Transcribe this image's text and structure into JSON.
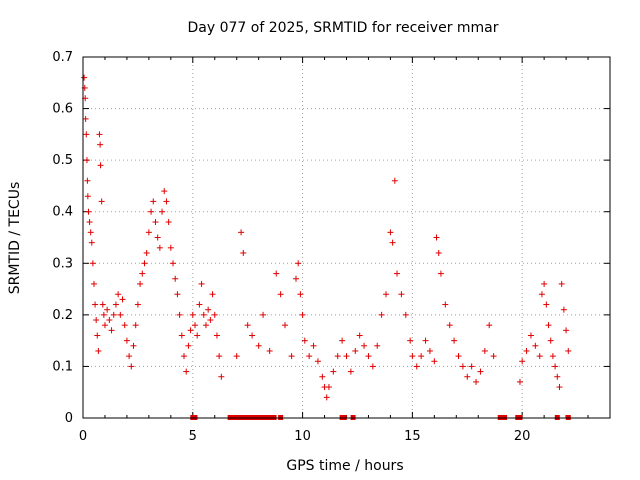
{
  "chart_data": {
    "type": "scatter",
    "title": "Day 077 of 2025, SRMTID for receiver mmar",
    "xlabel": "GPS time / hours",
    "ylabel": "SRMTID / TECUs",
    "xlim": [
      0,
      24
    ],
    "ylim": [
      0,
      0.7
    ],
    "xticks": [
      "0",
      "5",
      "10",
      "15",
      "20"
    ],
    "yticks": [
      "0",
      "0.1",
      "0.2",
      "0.3",
      "0.4",
      "0.5",
      "0.6",
      "0.7"
    ],
    "grid": true,
    "marker": "+",
    "color": "#e00000",
    "series": [
      {
        "name": "SRMTID",
        "points": [
          [
            0.05,
            0.66
          ],
          [
            0.08,
            0.64
          ],
          [
            0.1,
            0.62
          ],
          [
            0.12,
            0.58
          ],
          [
            0.15,
            0.55
          ],
          [
            0.18,
            0.5
          ],
          [
            0.2,
            0.46
          ],
          [
            0.22,
            0.43
          ],
          [
            0.25,
            0.4
          ],
          [
            0.3,
            0.38
          ],
          [
            0.35,
            0.36
          ],
          [
            0.4,
            0.34
          ],
          [
            0.45,
            0.3
          ],
          [
            0.5,
            0.26
          ],
          [
            0.55,
            0.22
          ],
          [
            0.6,
            0.19
          ],
          [
            0.65,
            0.16
          ],
          [
            0.7,
            0.13
          ],
          [
            0.75,
            0.55
          ],
          [
            0.78,
            0.53
          ],
          [
            0.8,
            0.49
          ],
          [
            0.85,
            0.42
          ],
          [
            0.9,
            0.22
          ],
          [
            0.95,
            0.2
          ],
          [
            1.0,
            0.18
          ],
          [
            1.1,
            0.21
          ],
          [
            1.2,
            0.19
          ],
          [
            1.3,
            0.17
          ],
          [
            1.4,
            0.2
          ],
          [
            1.5,
            0.22
          ],
          [
            1.6,
            0.24
          ],
          [
            1.7,
            0.2
          ],
          [
            1.8,
            0.23
          ],
          [
            1.9,
            0.18
          ],
          [
            2.0,
            0.15
          ],
          [
            2.1,
            0.12
          ],
          [
            2.2,
            0.1
          ],
          [
            2.3,
            0.14
          ],
          [
            2.4,
            0.18
          ],
          [
            2.5,
            0.22
          ],
          [
            2.6,
            0.26
          ],
          [
            2.7,
            0.28
          ],
          [
            2.8,
            0.3
          ],
          [
            2.9,
            0.32
          ],
          [
            3.0,
            0.36
          ],
          [
            3.1,
            0.4
          ],
          [
            3.2,
            0.42
          ],
          [
            3.3,
            0.38
          ],
          [
            3.4,
            0.35
          ],
          [
            3.5,
            0.33
          ],
          [
            3.6,
            0.4
          ],
          [
            3.7,
            0.44
          ],
          [
            3.8,
            0.42
          ],
          [
            3.9,
            0.38
          ],
          [
            4.0,
            0.33
          ],
          [
            4.1,
            0.3
          ],
          [
            4.2,
            0.27
          ],
          [
            4.3,
            0.24
          ],
          [
            4.4,
            0.2
          ],
          [
            4.5,
            0.16
          ],
          [
            4.6,
            0.12
          ],
          [
            4.7,
            0.09
          ],
          [
            4.8,
            0.14
          ],
          [
            4.9,
            0.17
          ],
          [
            5.0,
            0.2
          ],
          [
            5.1,
            0.18
          ],
          [
            5.2,
            0.16
          ],
          [
            5.3,
            0.22
          ],
          [
            5.4,
            0.26
          ],
          [
            5.5,
            0.2
          ],
          [
            5.6,
            0.18
          ],
          [
            5.7,
            0.21
          ],
          [
            5.8,
            0.19
          ],
          [
            5.9,
            0.24
          ],
          [
            6.0,
            0.2
          ],
          [
            6.1,
            0.16
          ],
          [
            6.2,
            0.12
          ],
          [
            6.3,
            0.08
          ],
          [
            7.0,
            0.12
          ],
          [
            7.2,
            0.36
          ],
          [
            7.3,
            0.32
          ],
          [
            7.5,
            0.18
          ],
          [
            7.7,
            0.16
          ],
          [
            8.0,
            0.14
          ],
          [
            8.2,
            0.2
          ],
          [
            8.5,
            0.13
          ],
          [
            8.8,
            0.28
          ],
          [
            9.0,
            0.24
          ],
          [
            9.2,
            0.18
          ],
          [
            9.5,
            0.12
          ],
          [
            9.7,
            0.27
          ],
          [
            9.8,
            0.3
          ],
          [
            9.9,
            0.24
          ],
          [
            10.0,
            0.2
          ],
          [
            10.1,
            0.15
          ],
          [
            10.3,
            0.12
          ],
          [
            10.5,
            0.14
          ],
          [
            10.7,
            0.11
          ],
          [
            10.9,
            0.08
          ],
          [
            11.0,
            0.06
          ],
          [
            11.1,
            0.04
          ],
          [
            11.2,
            0.06
          ],
          [
            11.4,
            0.09
          ],
          [
            11.6,
            0.12
          ],
          [
            11.8,
            0.15
          ],
          [
            12.0,
            0.12
          ],
          [
            12.2,
            0.09
          ],
          [
            12.4,
            0.13
          ],
          [
            12.6,
            0.16
          ],
          [
            12.8,
            0.14
          ],
          [
            13.0,
            0.12
          ],
          [
            13.2,
            0.1
          ],
          [
            13.4,
            0.14
          ],
          [
            13.6,
            0.2
          ],
          [
            13.8,
            0.24
          ],
          [
            14.0,
            0.36
          ],
          [
            14.1,
            0.34
          ],
          [
            14.2,
            0.46
          ],
          [
            14.3,
            0.28
          ],
          [
            14.5,
            0.24
          ],
          [
            14.7,
            0.2
          ],
          [
            14.9,
            0.15
          ],
          [
            15.0,
            0.12
          ],
          [
            15.2,
            0.1
          ],
          [
            15.4,
            0.12
          ],
          [
            15.6,
            0.15
          ],
          [
            15.8,
            0.13
          ],
          [
            16.0,
            0.11
          ],
          [
            16.1,
            0.35
          ],
          [
            16.2,
            0.32
          ],
          [
            16.3,
            0.28
          ],
          [
            16.5,
            0.22
          ],
          [
            16.7,
            0.18
          ],
          [
            16.9,
            0.15
          ],
          [
            17.1,
            0.12
          ],
          [
            17.3,
            0.1
          ],
          [
            17.5,
            0.08
          ],
          [
            17.7,
            0.1
          ],
          [
            17.9,
            0.07
          ],
          [
            18.1,
            0.09
          ],
          [
            18.3,
            0.13
          ],
          [
            18.5,
            0.18
          ],
          [
            18.7,
            0.12
          ],
          [
            19.9,
            0.07
          ],
          [
            20.0,
            0.11
          ],
          [
            20.2,
            0.13
          ],
          [
            20.4,
            0.16
          ],
          [
            20.6,
            0.14
          ],
          [
            20.8,
            0.12
          ],
          [
            20.9,
            0.24
          ],
          [
            21.0,
            0.26
          ],
          [
            21.1,
            0.22
          ],
          [
            21.2,
            0.18
          ],
          [
            21.3,
            0.15
          ],
          [
            21.4,
            0.12
          ],
          [
            21.5,
            0.1
          ],
          [
            21.6,
            0.08
          ],
          [
            21.7,
            0.06
          ],
          [
            21.8,
            0.26
          ],
          [
            21.9,
            0.21
          ],
          [
            22.0,
            0.17
          ],
          [
            22.1,
            0.13
          ]
        ],
        "zero_points": [
          5.0,
          5.05,
          5.1,
          6.7,
          6.9,
          7.1,
          7.3,
          7.5,
          7.7,
          7.9,
          8.1,
          8.3,
          8.5,
          8.7,
          9.0,
          11.8,
          11.9,
          12.3,
          19.0,
          19.1,
          19.2,
          19.8,
          19.9,
          21.6,
          22.1
        ]
      }
    ]
  }
}
